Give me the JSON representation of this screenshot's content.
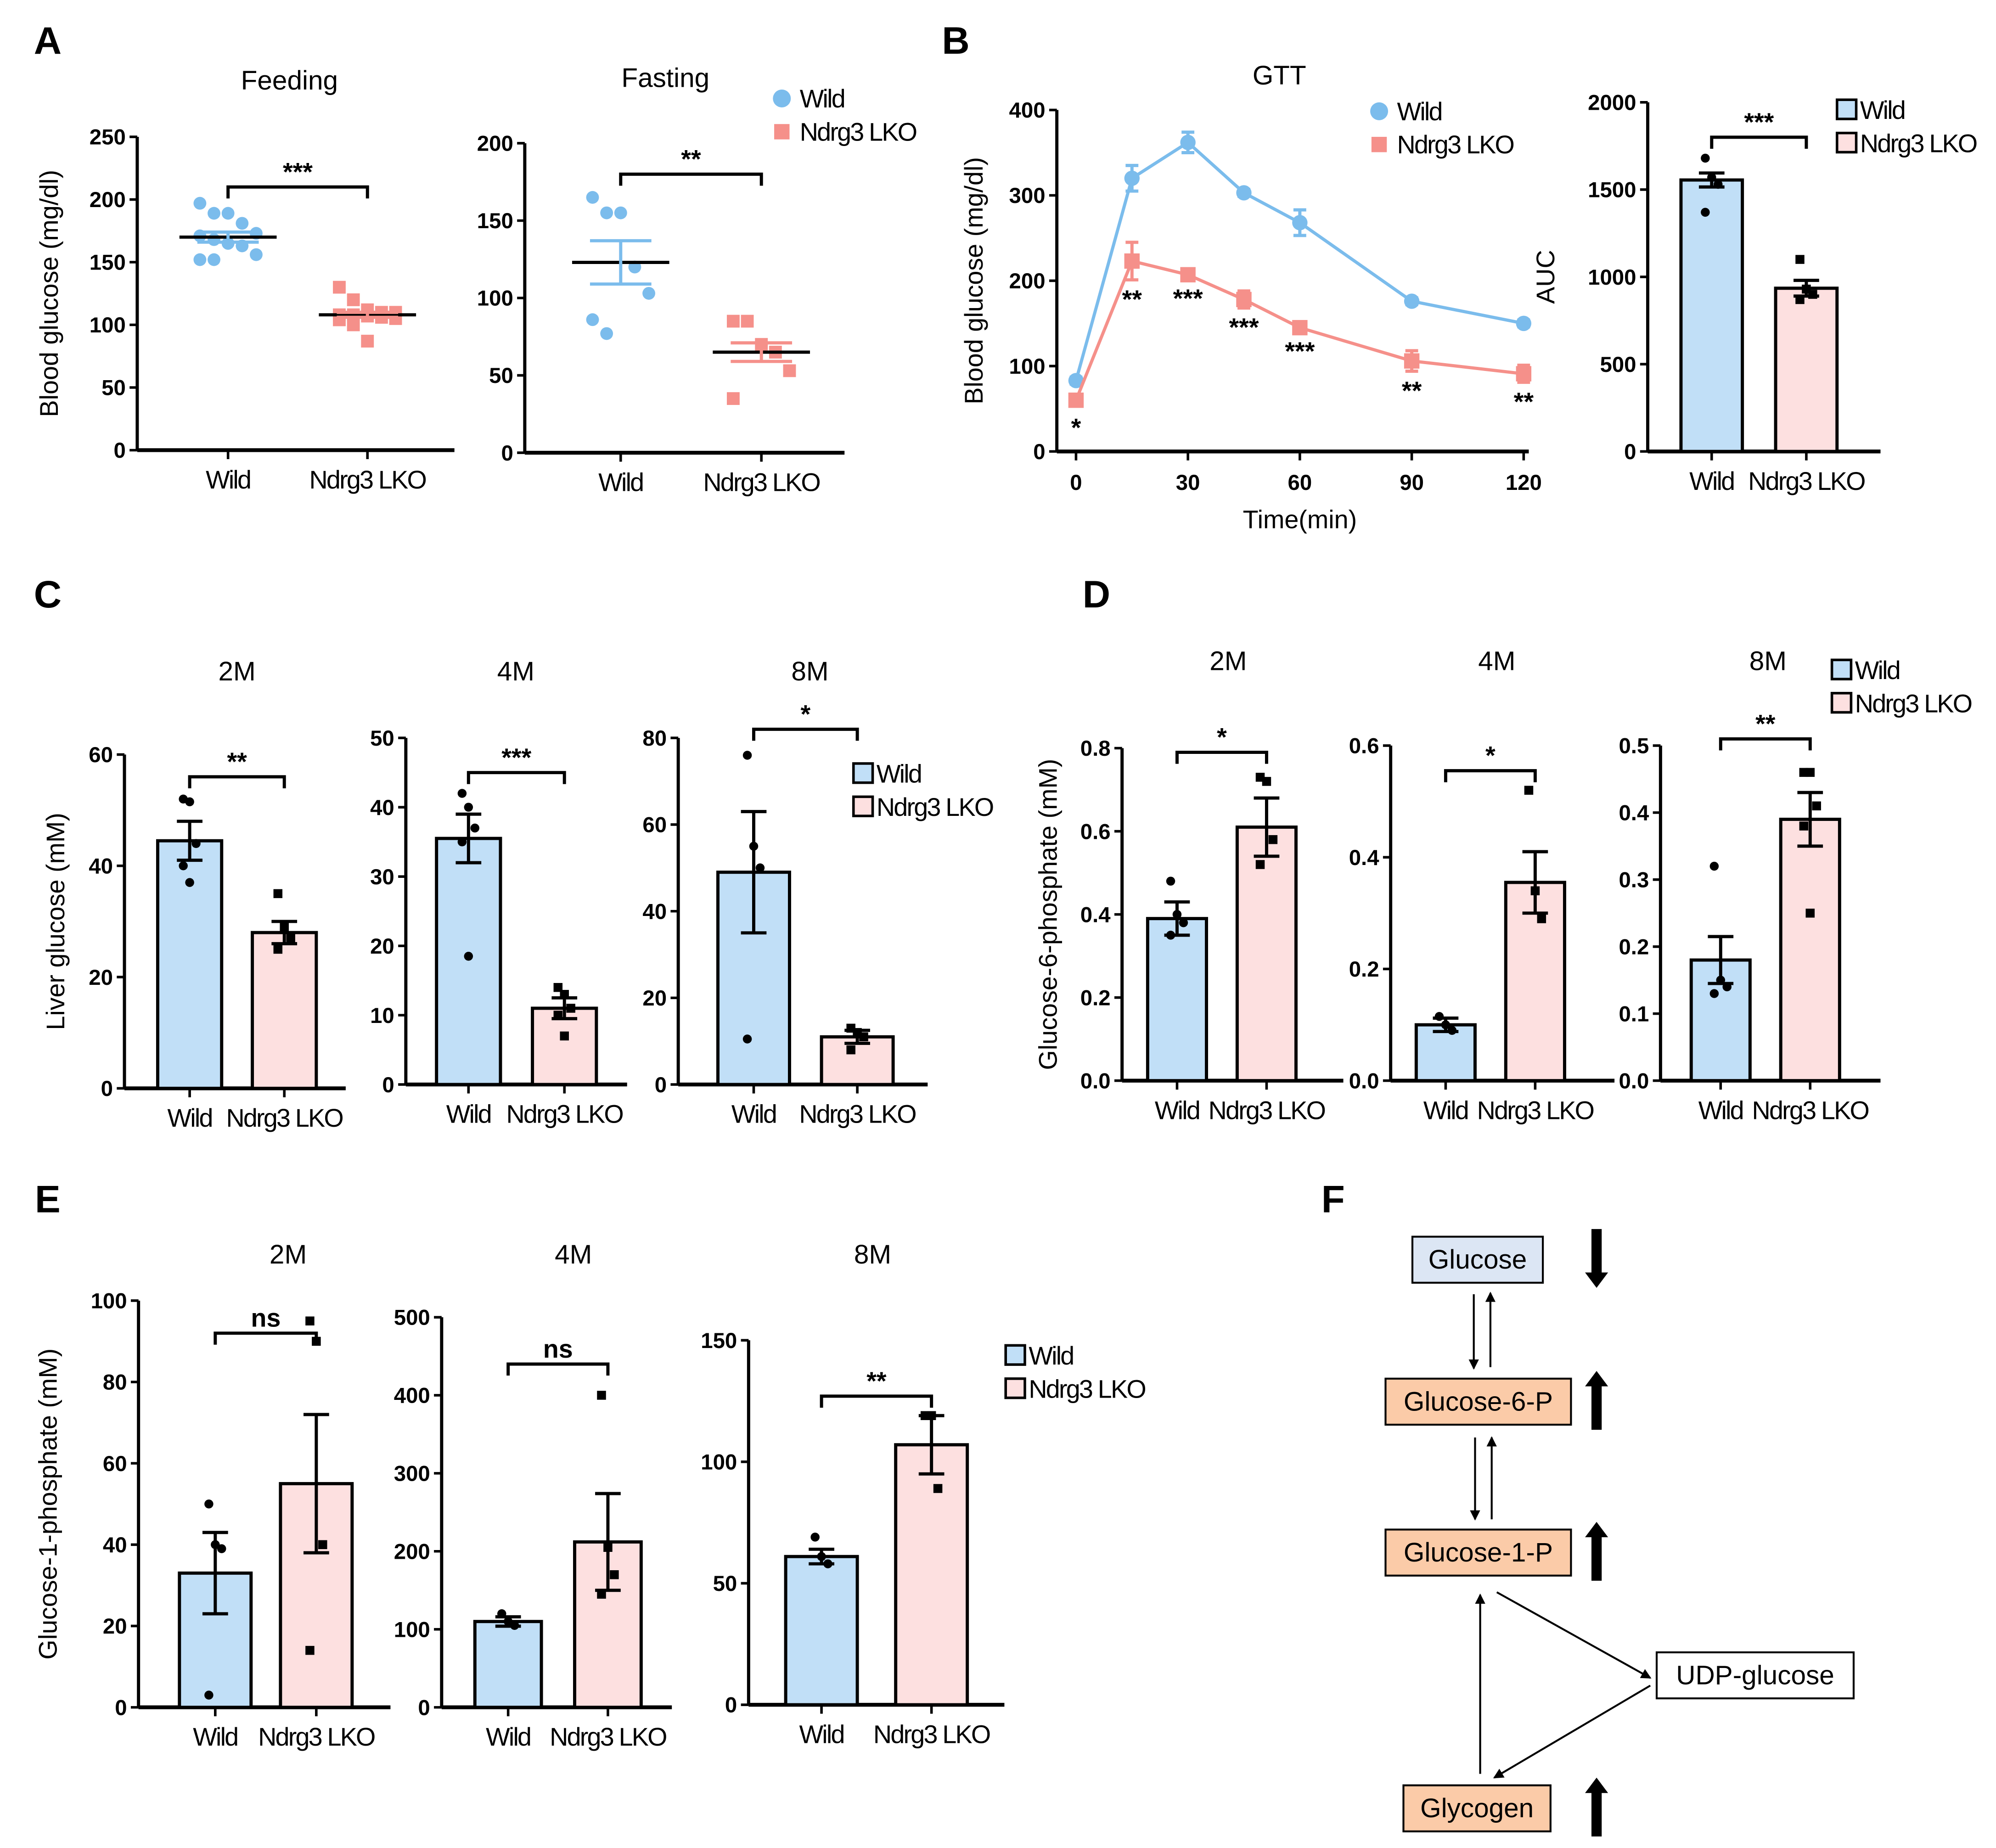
{
  "colors": {
    "wild_point": "#7bbcec",
    "ko_point": "#f5908a",
    "wild_bar": "#c1dff7",
    "ko_bar": "#fde0e0",
    "glucose_box": "#dce6f4",
    "metabolite_box": "#fbcba8"
  },
  "legend": {
    "wild": "Wild",
    "ko": "Ndrg3 LKO"
  },
  "panel_letters": [
    "A",
    "B",
    "C",
    "D",
    "E",
    "F"
  ],
  "chart_data": [
    {
      "id": "A1",
      "panel": "A",
      "type": "scatter",
      "title": "Feeding",
      "ylabel": "Blood glucose  (mg/dl)",
      "ylim": [
        0,
        250
      ],
      "yticks": [
        0,
        50,
        100,
        150,
        200,
        250
      ],
      "categories": [
        "Wild",
        "Ndrg3 LKO"
      ],
      "series": [
        {
          "name": "Wild",
          "mean": 170,
          "sem": 4,
          "points": [
            197,
            189,
            189,
            181,
            173,
            171,
            168,
            165,
            163,
            156,
            152,
            152
          ]
        },
        {
          "name": "Ndrg3 LKO",
          "mean": 108,
          "sem": 2,
          "points": [
            130,
            120,
            112,
            110,
            110,
            108,
            108,
            107,
            106,
            105,
            104,
            100,
            87
          ]
        }
      ],
      "significance": "***",
      "sig_y": 210
    },
    {
      "id": "A2",
      "panel": "A",
      "type": "scatter",
      "title": "Fasting",
      "ylabel": "",
      "ylim": [
        0,
        200
      ],
      "yticks": [
        0,
        50,
        100,
        150,
        200
      ],
      "categories": [
        "Wild",
        "Ndrg3 LKO"
      ],
      "series": [
        {
          "name": "Wild",
          "mean": 123,
          "sem": 14,
          "points": [
            165,
            155,
            155,
            120,
            103,
            86,
            77
          ]
        },
        {
          "name": "Ndrg3 LKO",
          "mean": 65,
          "sem": 6,
          "points": [
            85,
            85,
            70,
            65,
            53,
            35
          ]
        }
      ],
      "significance": "**",
      "sig_y": 180,
      "legend": "top-right"
    },
    {
      "id": "B1",
      "panel": "B",
      "type": "line",
      "title": "GTT",
      "xlabel": "Time(min)",
      "ylabel": "Blood glucose  (mg/dl)",
      "ylim": [
        0,
        400
      ],
      "yticks": [
        0,
        100,
        200,
        300,
        400
      ],
      "xlim": [
        0,
        120
      ],
      "xticks": [
        0,
        30,
        60,
        90,
        120
      ],
      "x": [
        0,
        15,
        30,
        45,
        60,
        90,
        120
      ],
      "series": [
        {
          "name": "Wild",
          "values": [
            83,
            320,
            362,
            303,
            268,
            176,
            150
          ],
          "sem": [
            4,
            15,
            12,
            4,
            15,
            4,
            4
          ]
        },
        {
          "name": "Ndrg3 LKO",
          "values": [
            60,
            223,
            207,
            178,
            145,
            106,
            91
          ],
          "sem": [
            5,
            22,
            5,
            10,
            5,
            12,
            10
          ]
        }
      ],
      "annotations": [
        "*",
        "**",
        "***",
        "***",
        "***",
        "**",
        "**"
      ],
      "legend": "top-right"
    },
    {
      "id": "B2",
      "panel": "B",
      "type": "bar",
      "title": "",
      "ylabel": "AUC",
      "ylim": [
        0,
        2000
      ],
      "yticks": [
        0,
        500,
        1000,
        1500,
        2000
      ],
      "categories": [
        "Wild",
        "Ndrg3 LKO"
      ],
      "series": [
        {
          "name": "Wild",
          "mean": 1555,
          "sem": 40,
          "points": [
            1680,
            1570,
            1530,
            1370
          ]
        },
        {
          "name": "Ndrg3 LKO",
          "mean": 935,
          "sem": 45,
          "points": [
            1100,
            930,
            900,
            870
          ]
        }
      ],
      "significance": "***",
      "sig_y": 1800,
      "legend": "top-right"
    },
    {
      "id": "C1",
      "panel": "C",
      "type": "bar",
      "title": "2M",
      "ylabel": "Liver glucose (mM)",
      "ylim": [
        0,
        60
      ],
      "yticks": [
        0,
        20,
        40,
        60
      ],
      "categories": [
        "Wild",
        "Ndrg3 LKO"
      ],
      "series": [
        {
          "name": "Wild",
          "mean": 44.5,
          "sem": 3.5,
          "points": [
            52,
            51.5,
            44,
            40,
            37
          ]
        },
        {
          "name": "Ndrg3 LKO",
          "mean": 28,
          "sem": 2,
          "points": [
            35,
            29,
            27,
            25
          ]
        }
      ],
      "significance": "**",
      "sig_y": 56
    },
    {
      "id": "C2",
      "panel": "C",
      "type": "bar",
      "title": "4M",
      "ylabel": "",
      "ylim": [
        0,
        50
      ],
      "yticks": [
        0,
        10,
        20,
        30,
        40,
        50
      ],
      "categories": [
        "Wild",
        "Ndrg3 LKO"
      ],
      "series": [
        {
          "name": "Wild",
          "mean": 35.5,
          "sem": 3.5,
          "points": [
            42,
            40,
            37,
            35,
            18.5
          ]
        },
        {
          "name": "Ndrg3 LKO",
          "mean": 11,
          "sem": 1.5,
          "points": [
            14,
            13,
            11,
            10,
            7
          ]
        }
      ],
      "significance": "***",
      "sig_y": 45
    },
    {
      "id": "C3",
      "panel": "C",
      "type": "bar",
      "title": "8M",
      "ylabel": "",
      "ylim": [
        0,
        80
      ],
      "yticks": [
        0,
        20,
        40,
        60,
        80
      ],
      "categories": [
        "Wild",
        "Ndrg3 LKO"
      ],
      "series": [
        {
          "name": "Wild",
          "mean": 49,
          "sem": 14,
          "points": [
            76,
            55,
            50,
            10.5
          ]
        },
        {
          "name": "Ndrg3 LKO",
          "mean": 11,
          "sem": 1.5,
          "points": [
            13,
            12,
            11,
            8
          ]
        }
      ],
      "significance": "*",
      "sig_y": 82,
      "legend": "top-right"
    },
    {
      "id": "D1",
      "panel": "D",
      "type": "bar",
      "title": "2M",
      "ylabel": "Glucose-6-phosphate (mM)",
      "ylim": [
        0,
        0.8
      ],
      "yticks": [
        "0.0",
        "0.2",
        "0.4",
        "0.6",
        "0.8"
      ],
      "categories": [
        "Wild",
        "Ndrg3 LKO"
      ],
      "series": [
        {
          "name": "Wild",
          "mean": 0.39,
          "sem": 0.04,
          "points": [
            0.48,
            0.4,
            0.38,
            0.35
          ]
        },
        {
          "name": "Ndrg3 LKO",
          "mean": 0.61,
          "sem": 0.07,
          "points": [
            0.73,
            0.72,
            0.58,
            0.52
          ]
        }
      ],
      "significance": "*",
      "sig_y": 0.79
    },
    {
      "id": "D2",
      "panel": "D",
      "type": "bar",
      "title": "4M",
      "ylabel": "",
      "ylim": [
        0,
        0.6
      ],
      "yticks": [
        "0.0",
        "0.2",
        "0.4",
        "0.6"
      ],
      "categories": [
        "Wild",
        "Ndrg3 LKO"
      ],
      "series": [
        {
          "name": "Wild",
          "mean": 0.1,
          "sem": 0.012,
          "points": [
            0.115,
            0.1,
            0.09
          ]
        },
        {
          "name": "Ndrg3 LKO",
          "mean": 0.355,
          "sem": 0.055,
          "points": [
            0.52,
            0.34,
            0.29
          ]
        }
      ],
      "significance": "*",
      "sig_y": 0.555
    },
    {
      "id": "D3",
      "panel": "D",
      "type": "bar",
      "title": "8M",
      "ylabel": "",
      "ylim": [
        0,
        0.5
      ],
      "yticks": [
        "0.0",
        "0.1",
        "0.2",
        "0.3",
        "0.4",
        "0.5"
      ],
      "categories": [
        "Wild",
        "Ndrg3 LKO"
      ],
      "series": [
        {
          "name": "Wild",
          "mean": 0.18,
          "sem": 0.035,
          "points": [
            0.32,
            0.15,
            0.14,
            0.13
          ]
        },
        {
          "name": "Ndrg3 LKO",
          "mean": 0.39,
          "sem": 0.04,
          "points": [
            0.46,
            0.46,
            0.41,
            0.38,
            0.25
          ]
        }
      ],
      "significance": "**",
      "sig_y": 0.51,
      "legend": "top-right"
    },
    {
      "id": "E1",
      "panel": "E",
      "type": "bar",
      "title": "2M",
      "ylabel": "Glucose-1-phosphate (mM)",
      "ylim": [
        0,
        100
      ],
      "yticks": [
        0,
        20,
        40,
        60,
        80,
        100
      ],
      "categories": [
        "Wild",
        "Ndrg3 LKO"
      ],
      "series": [
        {
          "name": "Wild",
          "mean": 33,
          "sem": 10,
          "points": [
            50,
            40,
            39,
            3
          ]
        },
        {
          "name": "Ndrg3 LKO",
          "mean": 55,
          "sem": 17,
          "points": [
            95,
            90,
            40,
            14
          ]
        }
      ],
      "significance": "ns",
      "sig_y": 92
    },
    {
      "id": "E2",
      "panel": "E",
      "type": "bar",
      "title": "4M",
      "ylabel": "",
      "ylim": [
        0,
        500
      ],
      "yticks": [
        0,
        100,
        200,
        300,
        400,
        500
      ],
      "categories": [
        "Wild",
        "Ndrg3 LKO"
      ],
      "series": [
        {
          "name": "Wild",
          "mean": 110,
          "sem": 6,
          "points": [
            120,
            110,
            105
          ]
        },
        {
          "name": "Ndrg3 LKO",
          "mean": 212,
          "sem": 62,
          "points": [
            400,
            205,
            170,
            145
          ]
        }
      ],
      "significance": "ns",
      "sig_y": 440
    },
    {
      "id": "E3",
      "panel": "E",
      "type": "bar",
      "title": "8M",
      "ylabel": "",
      "ylim": [
        0,
        150
      ],
      "yticks": [
        0,
        50,
        100,
        150
      ],
      "categories": [
        "Wild",
        "Ndrg3 LKO"
      ],
      "series": [
        {
          "name": "Wild",
          "mean": 61,
          "sem": 3,
          "points": [
            69,
            61,
            58
          ]
        },
        {
          "name": "Ndrg3 LKO",
          "mean": 107,
          "sem": 12,
          "points": [
            119,
            119,
            89
          ]
        }
      ],
      "significance": "**",
      "sig_y": 127,
      "legend": "top-right"
    }
  ],
  "diagram": {
    "panel": "F",
    "nodes": [
      {
        "id": "glucose",
        "label": "Glucose",
        "change": "down"
      },
      {
        "id": "g6p",
        "label": "Glucose-6-P",
        "change": "up"
      },
      {
        "id": "g1p",
        "label": "Glucose-1-P",
        "change": "up"
      },
      {
        "id": "udp",
        "label": "UDP-glucose",
        "change": ""
      },
      {
        "id": "glycogen",
        "label": "Glycogen",
        "change": "up"
      }
    ]
  }
}
